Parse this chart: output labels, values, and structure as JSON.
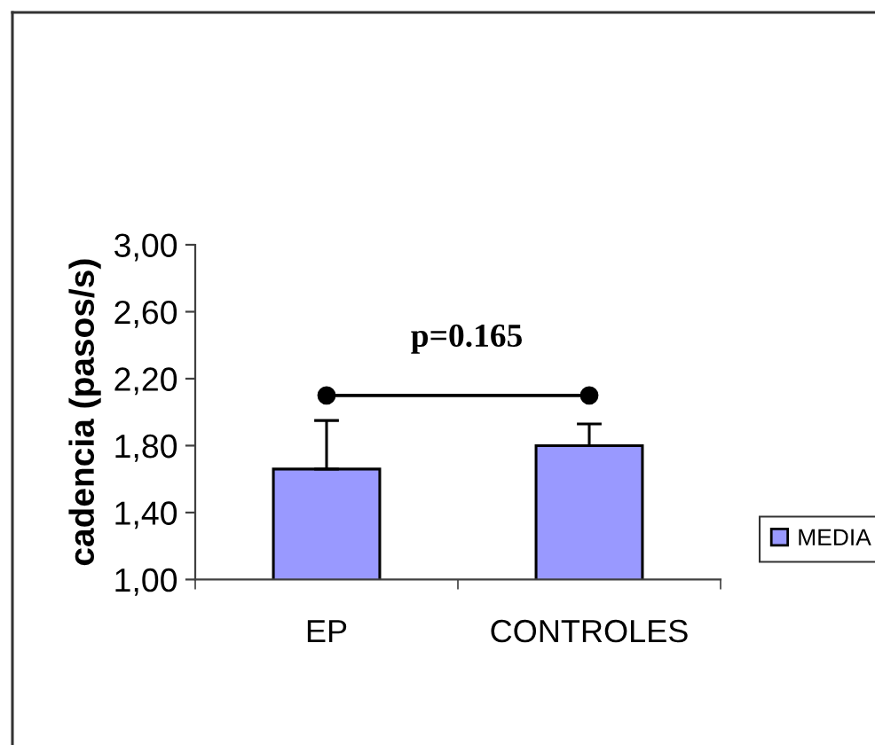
{
  "chart_data": {
    "type": "bar",
    "ylabel": "cadencia (pasos/s)",
    "annotations": [
      "p=0.165"
    ],
    "categories": [
      "EP",
      "CONTROLES"
    ],
    "series": [
      {
        "name": "MEDIA",
        "color": "#9999ff",
        "values": [
          1.66,
          1.8
        ],
        "errors": [
          [
            1.66,
            1.95
          ],
          [
            1.8,
            1.93
          ]
        ]
      },
      {
        "type": "line",
        "color": "#000000",
        "values": [
          2.1,
          2.1
        ],
        "marker": "circle"
      }
    ],
    "ylim": [
      1,
      3
    ],
    "yticks": [
      {
        "value": 1,
        "label": "1,00"
      },
      {
        "value": 1.4,
        "label": "1,40"
      },
      {
        "value": 1.8,
        "label": "1,80"
      },
      {
        "value": 2.2,
        "label": "2,20"
      },
      {
        "value": 2.6,
        "label": "2,60"
      },
      {
        "value": 3,
        "label": "3,00"
      }
    ],
    "grid": false,
    "legend": "right"
  }
}
